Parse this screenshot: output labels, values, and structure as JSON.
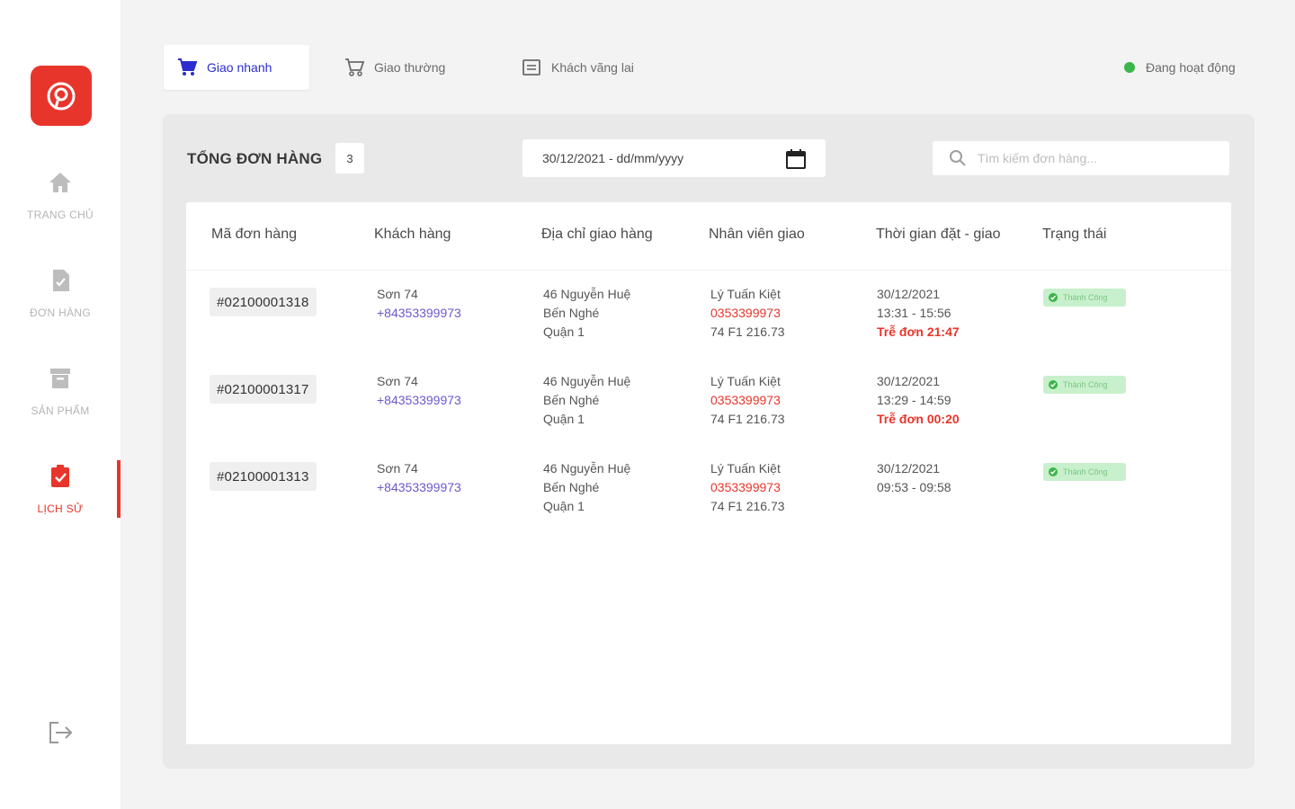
{
  "sidebar": {
    "items": [
      {
        "label": "TRANG CHỦ",
        "icon": "home-icon"
      },
      {
        "label": "ĐƠN HÀNG",
        "icon": "order-icon"
      },
      {
        "label": "SẢN PHẨM",
        "icon": "product-icon"
      },
      {
        "label": "LỊCH SỬ",
        "icon": "history-icon",
        "active": true
      }
    ],
    "logout_icon": "logout-icon"
  },
  "tabs": [
    {
      "label": "Giao nhanh",
      "icon": "cart-icon",
      "active": true
    },
    {
      "label": "Giao thường",
      "icon": "cart-icon"
    },
    {
      "label": "Khách vãng lai",
      "icon": "list-icon"
    }
  ],
  "status": {
    "label": "Đang hoạt động",
    "color": "#3cb54a"
  },
  "panel": {
    "title": "TỔNG ĐƠN HÀNG",
    "count": "3",
    "date_value": "30/12/2021 - dd/mm/yyyy",
    "search_placeholder": "Tìm kiếm đơn hàng..."
  },
  "table": {
    "headers": [
      "Mã đơn hàng",
      "Khách hàng",
      "Địa chỉ giao hàng",
      "Nhân viên giao",
      "Thời gian đặt - giao",
      "Trạng thái"
    ],
    "rows": [
      {
        "id": "#02100001318",
        "customer_name": "Sơn 74",
        "customer_phone": "+84353399973",
        "address_1": "46 Nguyễn Huệ",
        "address_2": "Bến Nghé",
        "address_3": "Quận 1",
        "staff_name": "Lý Tuấn Kiệt",
        "staff_phone": "0353399973",
        "staff_plate": "74 F1 216.73",
        "date": "30/12/2021",
        "time_range": "13:31 - 15:56",
        "late": "Trễ đơn 21:47",
        "status": "Thành Công"
      },
      {
        "id": "#02100001317",
        "customer_name": "Sơn 74",
        "customer_phone": "+84353399973",
        "address_1": "46 Nguyễn Huệ",
        "address_2": "Bến Nghé",
        "address_3": "Quận 1",
        "staff_name": "Lý Tuấn Kiệt",
        "staff_phone": "0353399973",
        "staff_plate": "74 F1 216.73",
        "date": "30/12/2021",
        "time_range": "13:29 - 14:59",
        "late": "Trễ đơn 00:20",
        "status": "Thành Công"
      },
      {
        "id": "#02100001313",
        "customer_name": "Sơn 74",
        "customer_phone": "+84353399973",
        "address_1": "46 Nguyễn Huệ",
        "address_2": "Bến Nghé",
        "address_3": "Quận 1",
        "staff_name": "Lý Tuấn Kiệt",
        "staff_phone": "0353399973",
        "staff_plate": "74 F1 216.73",
        "date": "30/12/2021",
        "time_range": "09:53 - 09:58",
        "late": "",
        "status": "Thành Công"
      }
    ]
  },
  "colors": {
    "accent": "#e8352b",
    "tab_active": "#2c2ccf",
    "success": "#3cb54a",
    "phone": "#6a5acd"
  }
}
